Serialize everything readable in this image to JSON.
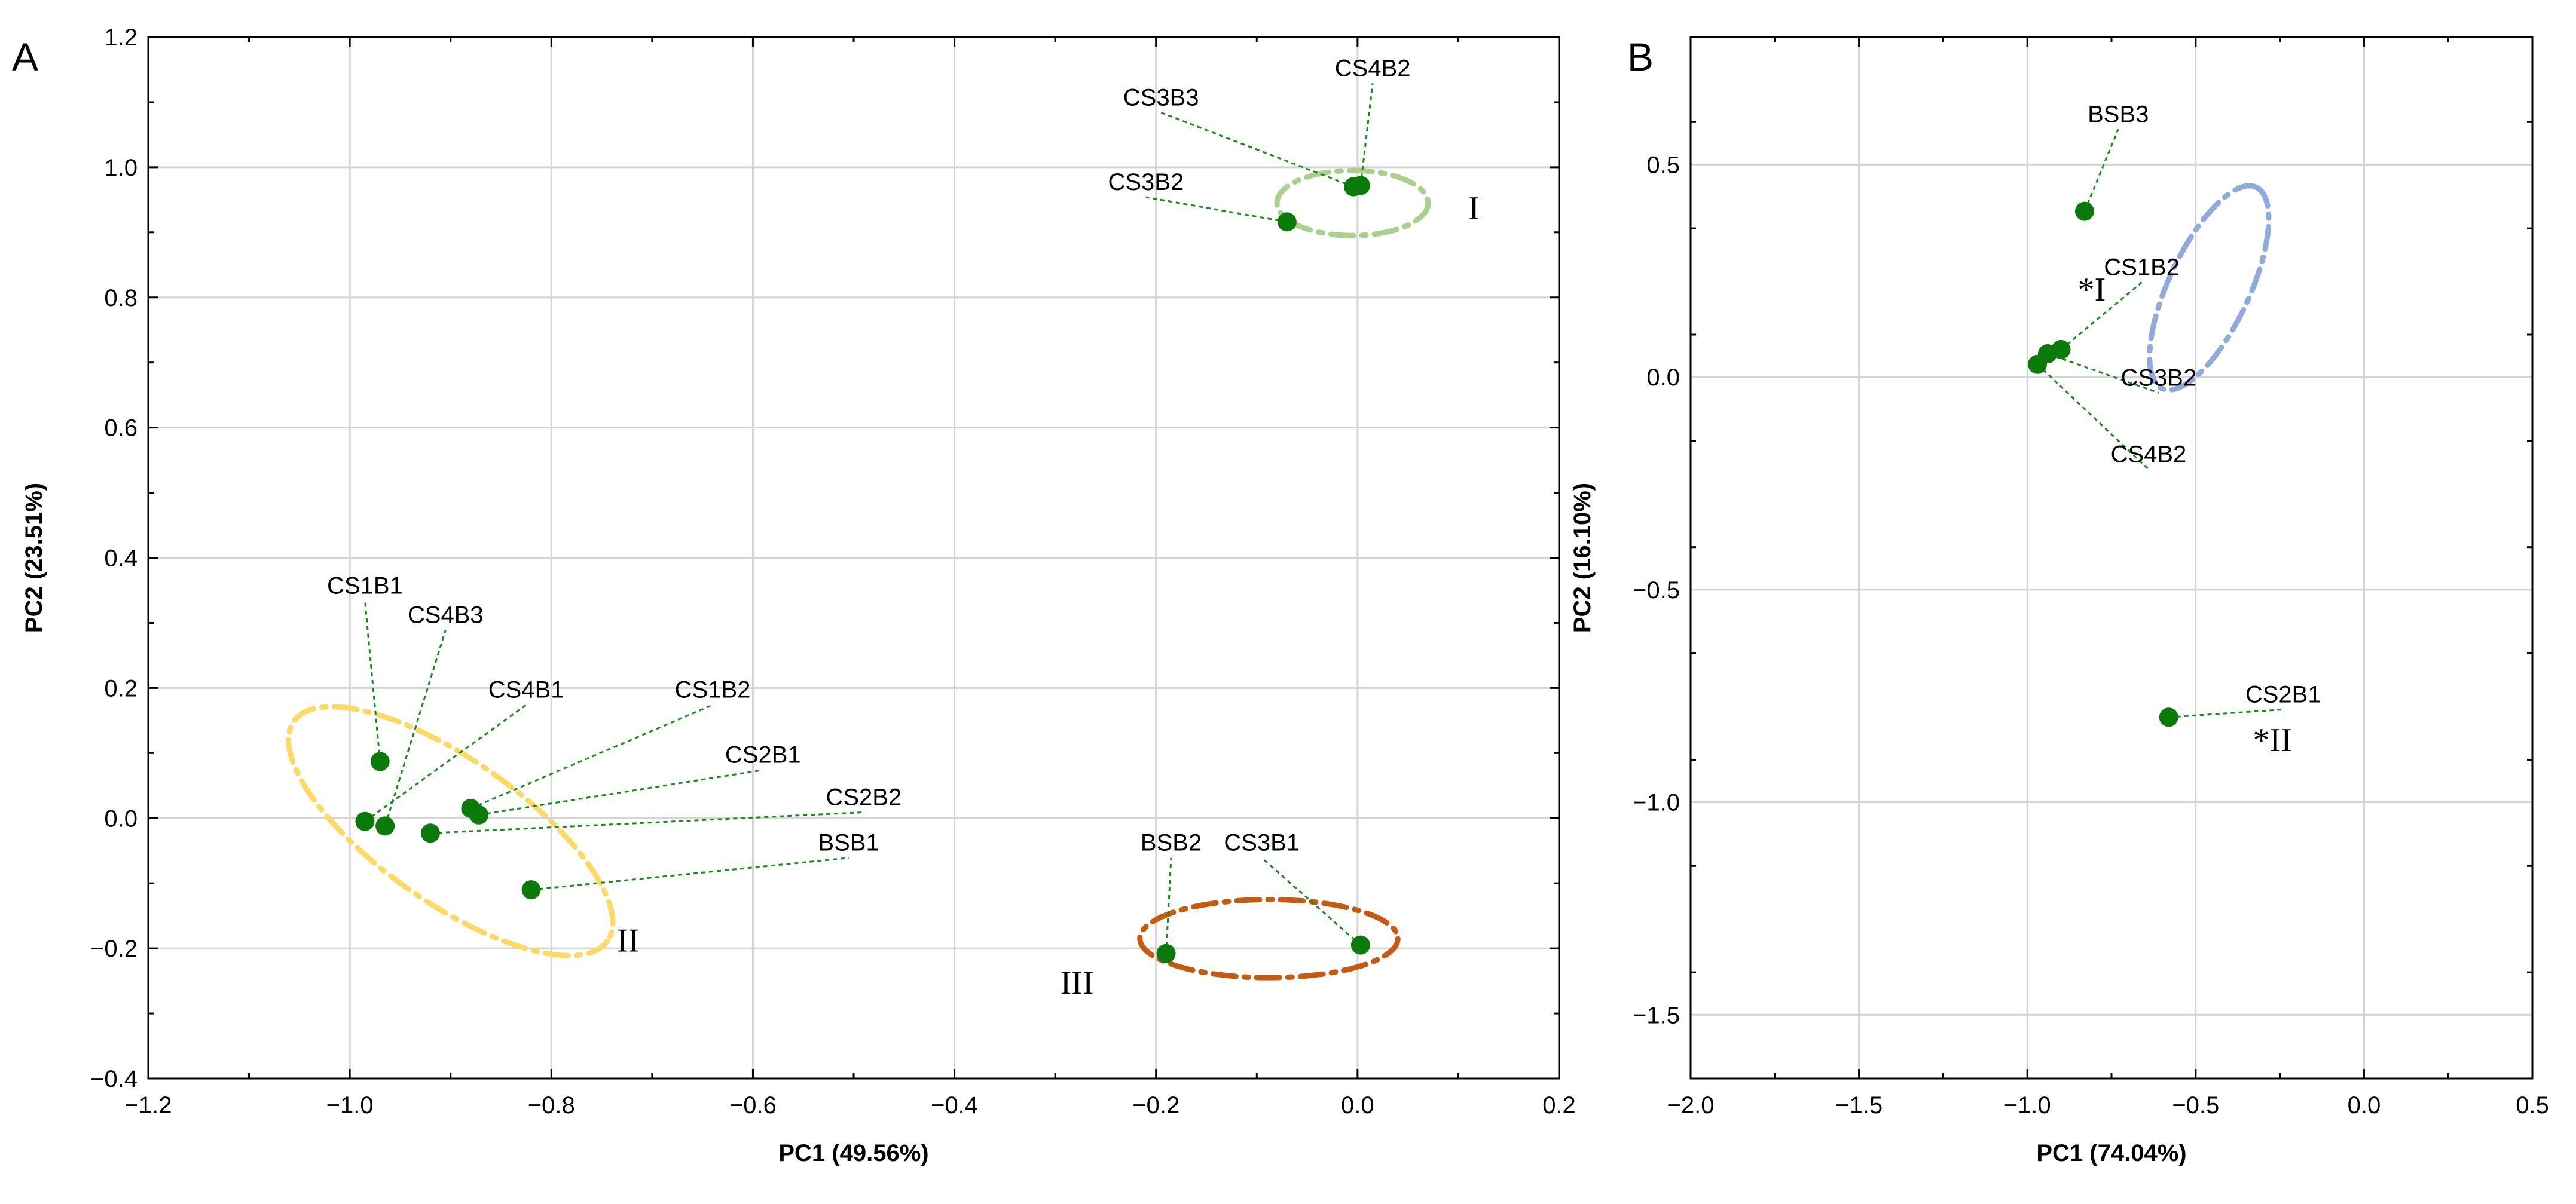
{
  "chart_data": [
    {
      "panel": "A",
      "type": "scatter",
      "xlabel": "PC1 (49.56%)",
      "ylabel": "PC2 (23.51%)",
      "xlim": [
        -1.2,
        0.2
      ],
      "ylim": [
        -0.4,
        1.2
      ],
      "xticks": [
        -1.2,
        -1.0,
        -0.8,
        -0.6,
        -0.4,
        -0.2,
        0.0,
        0.2
      ],
      "yticks": [
        -0.4,
        -0.2,
        0.0,
        0.2,
        0.4,
        0.6,
        0.8,
        1.0,
        1.2
      ],
      "xtick_labels": [
        "−1.2",
        "−1.0",
        "−0.8",
        "−0.6",
        "−0.4",
        "−0.2",
        "0.0",
        "0.2"
      ],
      "ytick_labels": [
        "−0.4",
        "−0.2",
        "0.0",
        "0.2",
        "0.4",
        "0.6",
        "0.8",
        "1.0",
        "1.2"
      ],
      "grid": true,
      "point_color": "#0a7a0a",
      "leader_color": "#1a8a1a",
      "points": [
        {
          "label": "CS3B3",
          "x": -0.004,
          "y": 0.97,
          "lx": -0.195,
          "ly": 1.095
        },
        {
          "label": "CS4B2",
          "x": 0.003,
          "y": 0.972,
          "lx": 0.015,
          "ly": 1.14
        },
        {
          "label": "CS3B2",
          "x": -0.07,
          "y": 0.916,
          "lx": -0.21,
          "ly": 0.965
        },
        {
          "label": "CS1B1",
          "x": -0.97,
          "y": 0.087,
          "lx": -0.985,
          "ly": 0.345
        },
        {
          "label": "CS4B3",
          "x": -0.965,
          "y": -0.012,
          "lx": -0.905,
          "ly": 0.3
        },
        {
          "label": "CS4B1",
          "x": -0.985,
          "y": -0.005,
          "lx": -0.825,
          "ly": 0.185
        },
        {
          "label": "CS1B2",
          "x": -0.88,
          "y": 0.015,
          "lx": -0.64,
          "ly": 0.185
        },
        {
          "label": "CS2B1",
          "x": -0.872,
          "y": 0.005,
          "lx": -0.59,
          "ly": 0.085
        },
        {
          "label": "CS2B2",
          "x": -0.92,
          "y": -0.023,
          "lx": -0.49,
          "ly": 0.02
        },
        {
          "label": "BSB1",
          "x": -0.82,
          "y": -0.11,
          "lx": -0.505,
          "ly": -0.05
        },
        {
          "label": "BSB2",
          "x": -0.19,
          "y": -0.208,
          "lx": -0.185,
          "ly": -0.05
        },
        {
          "label": "CS3B1",
          "x": 0.003,
          "y": -0.195,
          "lx": -0.095,
          "ly": -0.05
        }
      ],
      "clusters": [
        {
          "label": "I",
          "color": "#a9d18e",
          "cx": -0.005,
          "cy": 0.945,
          "rx": 0.075,
          "ry": 0.05,
          "rot": 0,
          "lx": 0.11,
          "ly": 0.92
        },
        {
          "label": "II",
          "color": "#ffd966",
          "cx": -0.9,
          "cy": -0.02,
          "rx": 0.19,
          "ry": 0.11,
          "rot": 35,
          "lx": -0.735,
          "ly": -0.205
        },
        {
          "label": "III",
          "color": "#c55a11",
          "cx": -0.088,
          "cy": -0.185,
          "rx": 0.128,
          "ry": 0.06,
          "rot": 0,
          "lx": -0.295,
          "ly": -0.27
        }
      ]
    },
    {
      "panel": "B",
      "type": "scatter",
      "xlabel": "PC1 (74.04%)",
      "ylabel": "PC2 (16.10%)",
      "xlim": [
        -2.0,
        0.5
      ],
      "ylim": [
        -1.65,
        0.8
      ],
      "xticks": [
        -2.0,
        -1.5,
        -1.0,
        -0.5,
        0.0,
        0.5
      ],
      "yticks": [
        -1.5,
        -1.0,
        -0.5,
        0.0,
        0.5
      ],
      "xtick_labels": [
        "−2.0",
        "−1.5",
        "−1.0",
        "−0.5",
        "0.0",
        "0.5"
      ],
      "ytick_labels": [
        "−1.5",
        "−1.0",
        "−0.5",
        "0.0",
        "0.5"
      ],
      "grid": true,
      "point_color": "#0a7a0a",
      "leader_color": "#1a8a1a",
      "points": [
        {
          "label": "BSB3",
          "x": -0.83,
          "y": 0.39,
          "lx": -0.73,
          "ly": 0.6
        },
        {
          "label": "CS1B2",
          "x": -0.9,
          "y": 0.065,
          "lx": -0.66,
          "ly": 0.24
        },
        {
          "label": "CS3B2",
          "x": -0.94,
          "y": 0.055,
          "lx": -0.61,
          "ly": -0.02
        },
        {
          "label": "CS4B2",
          "x": -0.97,
          "y": 0.03,
          "lx": -0.64,
          "ly": -0.2
        },
        {
          "label": "CS2B1",
          "x": -0.58,
          "y": -0.8,
          "lx": -0.24,
          "ly": -0.765
        }
      ],
      "clusters": [
        {
          "label": "*I",
          "color": "#8faadc",
          "cx": -0.46,
          "cy": 0.21,
          "rx": 0.33,
          "ry": 0.095,
          "rot": -65,
          "lx": -0.85,
          "ly": 0.18
        },
        {
          "label": "*II",
          "color": "#000000",
          "lx": -0.33,
          "ly": -0.88
        }
      ]
    }
  ],
  "panels": {
    "a_letter": "A",
    "b_letter": "B"
  }
}
